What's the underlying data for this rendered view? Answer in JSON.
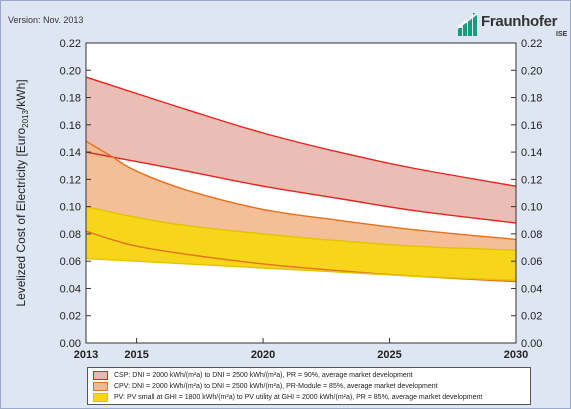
{
  "header": {
    "version_text": "Version: Nov. 2013",
    "logo_text": "Fraunhofer",
    "logo_subtext": "ISE",
    "logo_color": "#179c7d"
  },
  "chart_data": {
    "type": "area",
    "ylabel_parts": [
      "Levelized Cost of Electricity [Euro",
      "2013",
      "/kWh]"
    ],
    "xlabel": "",
    "x_ticks": [
      2013,
      2015,
      2020,
      2025,
      2030
    ],
    "y_ticks": [
      "0.00",
      "0.02",
      "0.04",
      "0.06",
      "0.08",
      "0.10",
      "0.12",
      "0.14",
      "0.16",
      "0.18",
      "0.20",
      "0.22"
    ],
    "xlim": [
      2013,
      2030
    ],
    "ylim": [
      0,
      0.22
    ],
    "grid": false,
    "legend_position": "bottom",
    "series": [
      {
        "key": "csp",
        "legend": "CSP: DNI = 2000 kWh/(m²a) to DNI = 2500 kWh/(m²a), PR = 90%, average market development",
        "fill": "#e8b8ae",
        "line": "#e8231d",
        "x": [
          2013,
          2015,
          2017,
          2020,
          2023,
          2026,
          2030
        ],
        "upper": [
          0.195,
          0.183,
          0.171,
          0.154,
          0.14,
          0.128,
          0.115
        ],
        "lower": [
          0.14,
          0.133,
          0.126,
          0.115,
          0.106,
          0.097,
          0.088
        ]
      },
      {
        "key": "cpv",
        "legend": "CPV: DNI = 2000 kWh/(m²a) to DNI = 2500 kWh/(m²a), PR-Module = 85%, average market development",
        "fill": "#f3b98e",
        "line": "#e5701e",
        "x": [
          2013,
          2014,
          2015,
          2017,
          2020,
          2023,
          2026,
          2030
        ],
        "upper": [
          0.148,
          0.137,
          0.126,
          0.112,
          0.098,
          0.09,
          0.083,
          0.076
        ],
        "lower": [
          0.082,
          0.076,
          0.071,
          0.065,
          0.058,
          0.053,
          0.049,
          0.045
        ]
      },
      {
        "key": "pv",
        "legend": "PV: PV small at GHI = 1800 kWh/(m²a) to PV utility at GHI = 2000 kWh/(m²a), PR = 85%, average market development",
        "fill": "#f7d51a",
        "line": "#e2c400",
        "x": [
          2013,
          2015,
          2017,
          2020,
          2023,
          2026,
          2030
        ],
        "upper": [
          0.1,
          0.092,
          0.086,
          0.08,
          0.075,
          0.071,
          0.068
        ],
        "lower": [
          0.062,
          0.06,
          0.058,
          0.055,
          0.052,
          0.049,
          0.046
        ]
      }
    ]
  }
}
